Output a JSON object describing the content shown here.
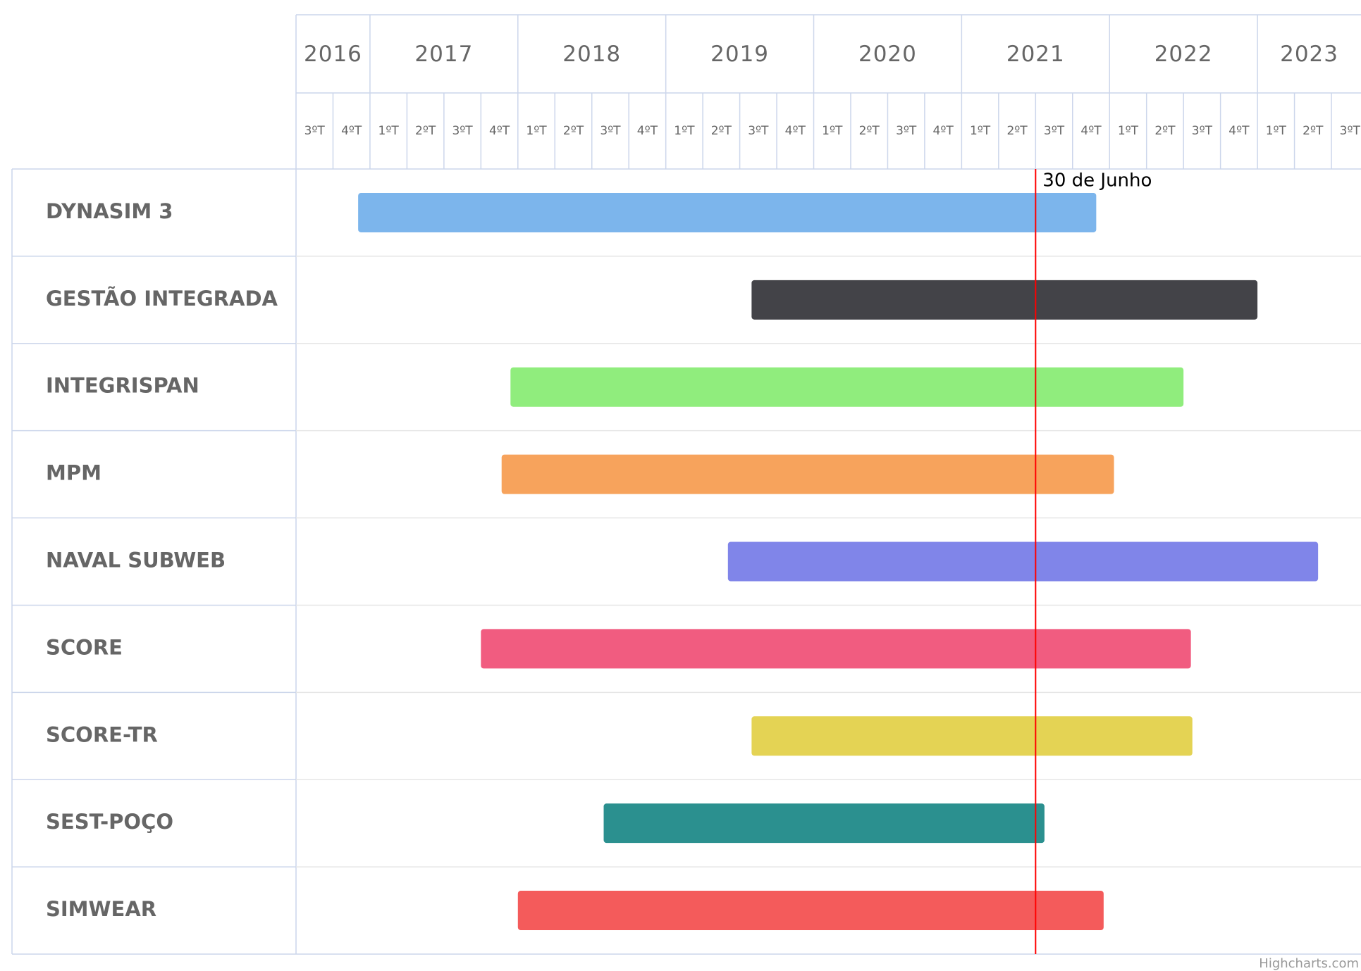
{
  "chart_data": {
    "type": "gantt",
    "xlim": [
      2016.5,
      2023.7
    ],
    "years": [
      2016,
      2017,
      2018,
      2019,
      2020,
      2021,
      2022,
      2023
    ],
    "quarters": [
      {
        "value": 2016.5,
        "label": "3ºT"
      },
      {
        "value": 2016.75,
        "label": "4ºT"
      },
      {
        "value": 2017,
        "label": "1ºT"
      },
      {
        "value": 2017.25,
        "label": "2ºT"
      },
      {
        "value": 2017.5,
        "label": "3ºT"
      },
      {
        "value": 2017.75,
        "label": "4ºT"
      },
      {
        "value": 2018,
        "label": "1ºT"
      },
      {
        "value": 2018.25,
        "label": "2ºT"
      },
      {
        "value": 2018.5,
        "label": "3ºT"
      },
      {
        "value": 2018.75,
        "label": "4ºT"
      },
      {
        "value": 2019,
        "label": "1ºT"
      },
      {
        "value": 2019.25,
        "label": "2ºT"
      },
      {
        "value": 2019.5,
        "label": "3ºT"
      },
      {
        "value": 2019.75,
        "label": "4ºT"
      },
      {
        "value": 2020,
        "label": "1ºT"
      },
      {
        "value": 2020.25,
        "label": "2ºT"
      },
      {
        "value": 2020.5,
        "label": "3ºT"
      },
      {
        "value": 2020.75,
        "label": "4ºT"
      },
      {
        "value": 2021,
        "label": "1ºT"
      },
      {
        "value": 2021.25,
        "label": "2ºT"
      },
      {
        "value": 2021.5,
        "label": "3ºT"
      },
      {
        "value": 2021.75,
        "label": "4ºT"
      },
      {
        "value": 2022,
        "label": "1ºT"
      },
      {
        "value": 2022.25,
        "label": "2ºT"
      },
      {
        "value": 2022.5,
        "label": "3ºT"
      },
      {
        "value": 2022.75,
        "label": "4ºT"
      },
      {
        "value": 2023,
        "label": "1ºT"
      },
      {
        "value": 2023.25,
        "label": "2ºT"
      },
      {
        "value": 2023.5,
        "label": "3ºT"
      }
    ],
    "tasks": [
      {
        "name": "DYNASIM 3",
        "start": 2016.92,
        "end": 2021.91,
        "color": "#7cb5ec"
      },
      {
        "name": "GESTÃO INTEGRADA",
        "start": 2019.58,
        "end": 2023.0,
        "color": "#434348"
      },
      {
        "name": "INTEGRISPAN",
        "start": 2017.95,
        "end": 2022.5,
        "color": "#90ed7d"
      },
      {
        "name": "MPM",
        "start": 2017.89,
        "end": 2022.03,
        "color": "#f7a35c"
      },
      {
        "name": "NAVAL SUBWEB",
        "start": 2019.42,
        "end": 2023.41,
        "color": "#8085e9"
      },
      {
        "name": "SCORE",
        "start": 2017.75,
        "end": 2022.55,
        "color": "#f15c80"
      },
      {
        "name": "SCORE-TR",
        "start": 2019.58,
        "end": 2022.56,
        "color": "#e4d354"
      },
      {
        "name": "SEST-POÇO",
        "start": 2018.58,
        "end": 2021.56,
        "color": "#2b908f"
      },
      {
        "name": "SIMWEAR",
        "start": 2018.0,
        "end": 2021.96,
        "color": "#f45b5b"
      }
    ],
    "today": {
      "value": 2021.5,
      "label": "30 de Junho",
      "color": "#ff0000"
    },
    "credits": "Highcharts.com"
  }
}
